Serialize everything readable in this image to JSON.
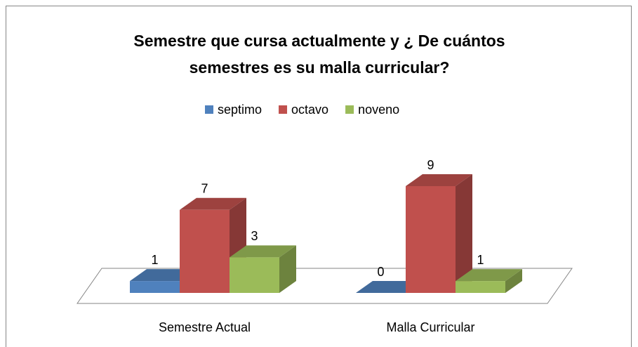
{
  "chart_data": {
    "type": "bar3d",
    "title": [
      "Semestre que cursa actualmente  y ¿ De cuántos",
      "semestres es su malla curricular?"
    ],
    "categories": [
      "Semestre Actual",
      "Malla Curricular"
    ],
    "series": [
      {
        "name": "septimo",
        "color": "#4f81bd",
        "values": [
          1,
          0
        ]
      },
      {
        "name": "octavo",
        "color": "#c0504d",
        "values": [
          7,
          9
        ]
      },
      {
        "name": "noveno",
        "color": "#9bbb59",
        "values": [
          3,
          1
        ]
      }
    ],
    "legend": "top"
  }
}
